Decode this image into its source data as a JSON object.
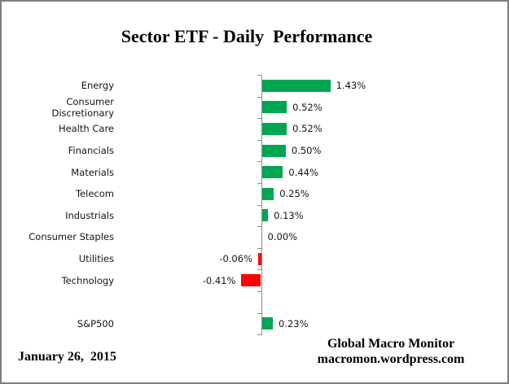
{
  "title": "Sector ETF - Daily  Performance",
  "footer": {
    "date": "January 26,  2015",
    "credit_line1": "Global Macro Monitor",
    "credit_line2": "macromon.wordpress.com"
  },
  "chart_data": {
    "type": "bar",
    "orientation": "horizontal",
    "title": "Sector ETF - Daily Performance",
    "categories": [
      "Energy",
      "Consumer Discretionary",
      "Health Care",
      "Financials",
      "Materials",
      "Telecom",
      "Industrials",
      "Consumer Staples",
      "Utilities",
      "Technology",
      "",
      "S&P500"
    ],
    "values": [
      1.43,
      0.52,
      0.52,
      0.5,
      0.44,
      0.25,
      0.13,
      0.0,
      -0.06,
      -0.41,
      null,
      0.23
    ],
    "value_labels": [
      "1.43%",
      "0.52%",
      "0.52%",
      "0.50%",
      "0.44%",
      "0.25%",
      "0.13%",
      "0.00%",
      "-0.06%",
      "-0.41%",
      "",
      "0.23%"
    ],
    "unit": "percent",
    "xlabel": "",
    "ylabel": "",
    "grid": false,
    "legend": false,
    "zero_baseline": true,
    "positive_color": "#00A651",
    "negative_color": "#FF0000",
    "axis_color": "#8F8F8F",
    "label_color": "#151515"
  }
}
